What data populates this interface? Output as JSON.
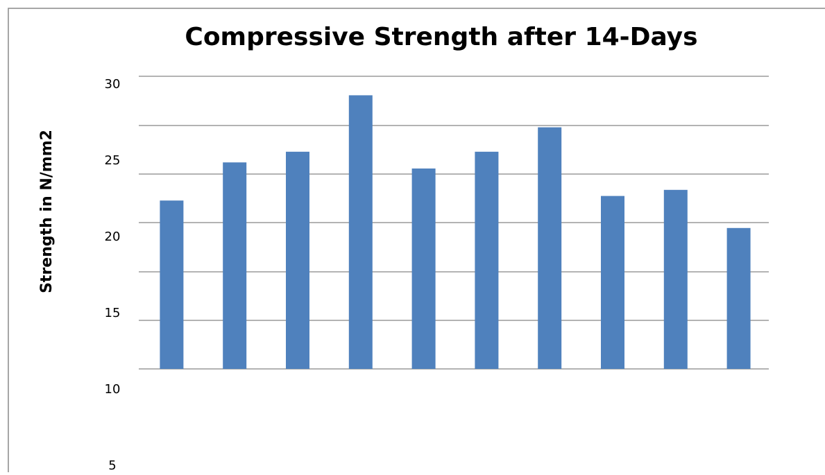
{
  "chart_data": {
    "type": "bar",
    "title": "Compressive Strength after 14-Days",
    "y_label": "Strength in N/mm2",
    "categories": [
      null,
      null,
      null,
      null,
      null,
      null,
      null,
      null,
      null,
      null
    ],
    "values": [
      22.4,
      24.9,
      25.6,
      29.3,
      24.5,
      25.6,
      27.2,
      22.7,
      23.1,
      20.6
    ],
    "color": "#4f81bd",
    "ylim": [
      5,
      30
    ],
    "yticks": [
      5,
      10,
      15,
      20,
      25,
      30
    ]
  }
}
